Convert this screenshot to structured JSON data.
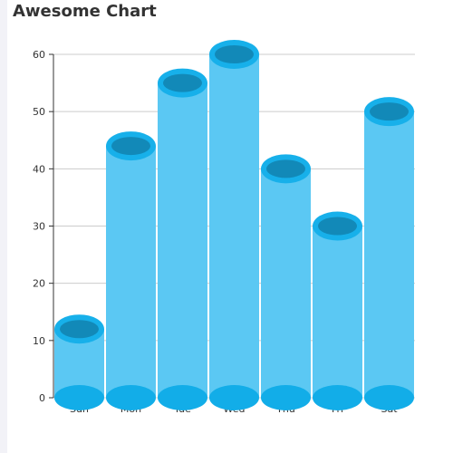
{
  "colors": {
    "bar_body": "#5bc8f3",
    "bar_top_ring": "#17b0ea",
    "bar_top_inner": "#1289b8",
    "bar_bottom": "#12ade8",
    "gridline": "#cccccc",
    "axis": "#333333"
  },
  "chart_data": {
    "type": "bar",
    "title": "Awesome Chart",
    "categories": [
      "Sun",
      "Mon",
      "Tue",
      "Wed",
      "Thu",
      "Fri",
      "Sat"
    ],
    "values": [
      12,
      44,
      55,
      60,
      40,
      30,
      50
    ],
    "ylim": [
      0,
      60
    ],
    "yticks": [
      0,
      10,
      20,
      30,
      40,
      50,
      60
    ],
    "grid": true,
    "style": "cylinder"
  }
}
